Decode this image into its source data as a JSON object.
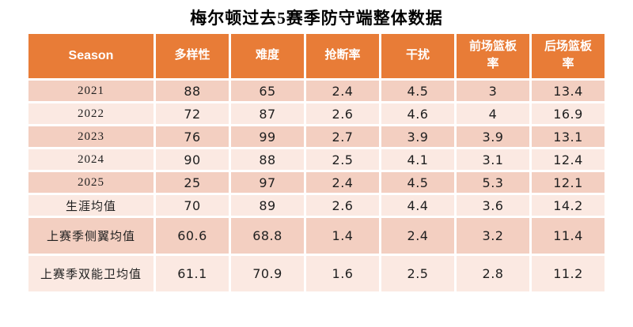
{
  "chart_data": {
    "type": "table",
    "title": "梅尔顿过去5赛季防守端整体数据",
    "columns": [
      "Season",
      "多样性",
      "难度",
      "抢断率",
      "干扰",
      "前场篮板率",
      "后场篮板率"
    ],
    "rows": [
      {
        "label": "2021",
        "values": [
          "88",
          "65",
          "2.4",
          "4.5",
          "3",
          "13.4"
        ]
      },
      {
        "label": "2022",
        "values": [
          "72",
          "87",
          "2.6",
          "4.6",
          "4",
          "16.9"
        ]
      },
      {
        "label": "2023",
        "values": [
          "76",
          "99",
          "2.7",
          "3.9",
          "3.9",
          "13.1"
        ]
      },
      {
        "label": "2024",
        "values": [
          "90",
          "88",
          "2.5",
          "4.1",
          "3.1",
          "12.4"
        ]
      },
      {
        "label": "2025",
        "values": [
          "25",
          "97",
          "2.4",
          "4.5",
          "5.3",
          "12.1"
        ]
      },
      {
        "label": "生涯均值",
        "values": [
          "70",
          "89",
          "2.6",
          "4.4",
          "3.6",
          "14.2"
        ]
      },
      {
        "label": "上赛季侧翼均值",
        "values": [
          "60.6",
          "68.8",
          "1.4",
          "2.4",
          "3.2",
          "11.4"
        ]
      },
      {
        "label": "上赛季双能卫均值",
        "values": [
          "61.1",
          "70.9",
          "1.6",
          "2.5",
          "2.8",
          "11.2"
        ]
      }
    ],
    "layout": {
      "banded_rows": true,
      "header_position": "top",
      "grid_lines": "white-separators"
    }
  },
  "colors": {
    "header-bg": "#E87C37",
    "header-text": "#FFFFFF",
    "band-dark": "#F3CFC1",
    "band-light": "#FBE9E2",
    "body-text": "#1F1F1F",
    "title-text": "#000000"
  }
}
